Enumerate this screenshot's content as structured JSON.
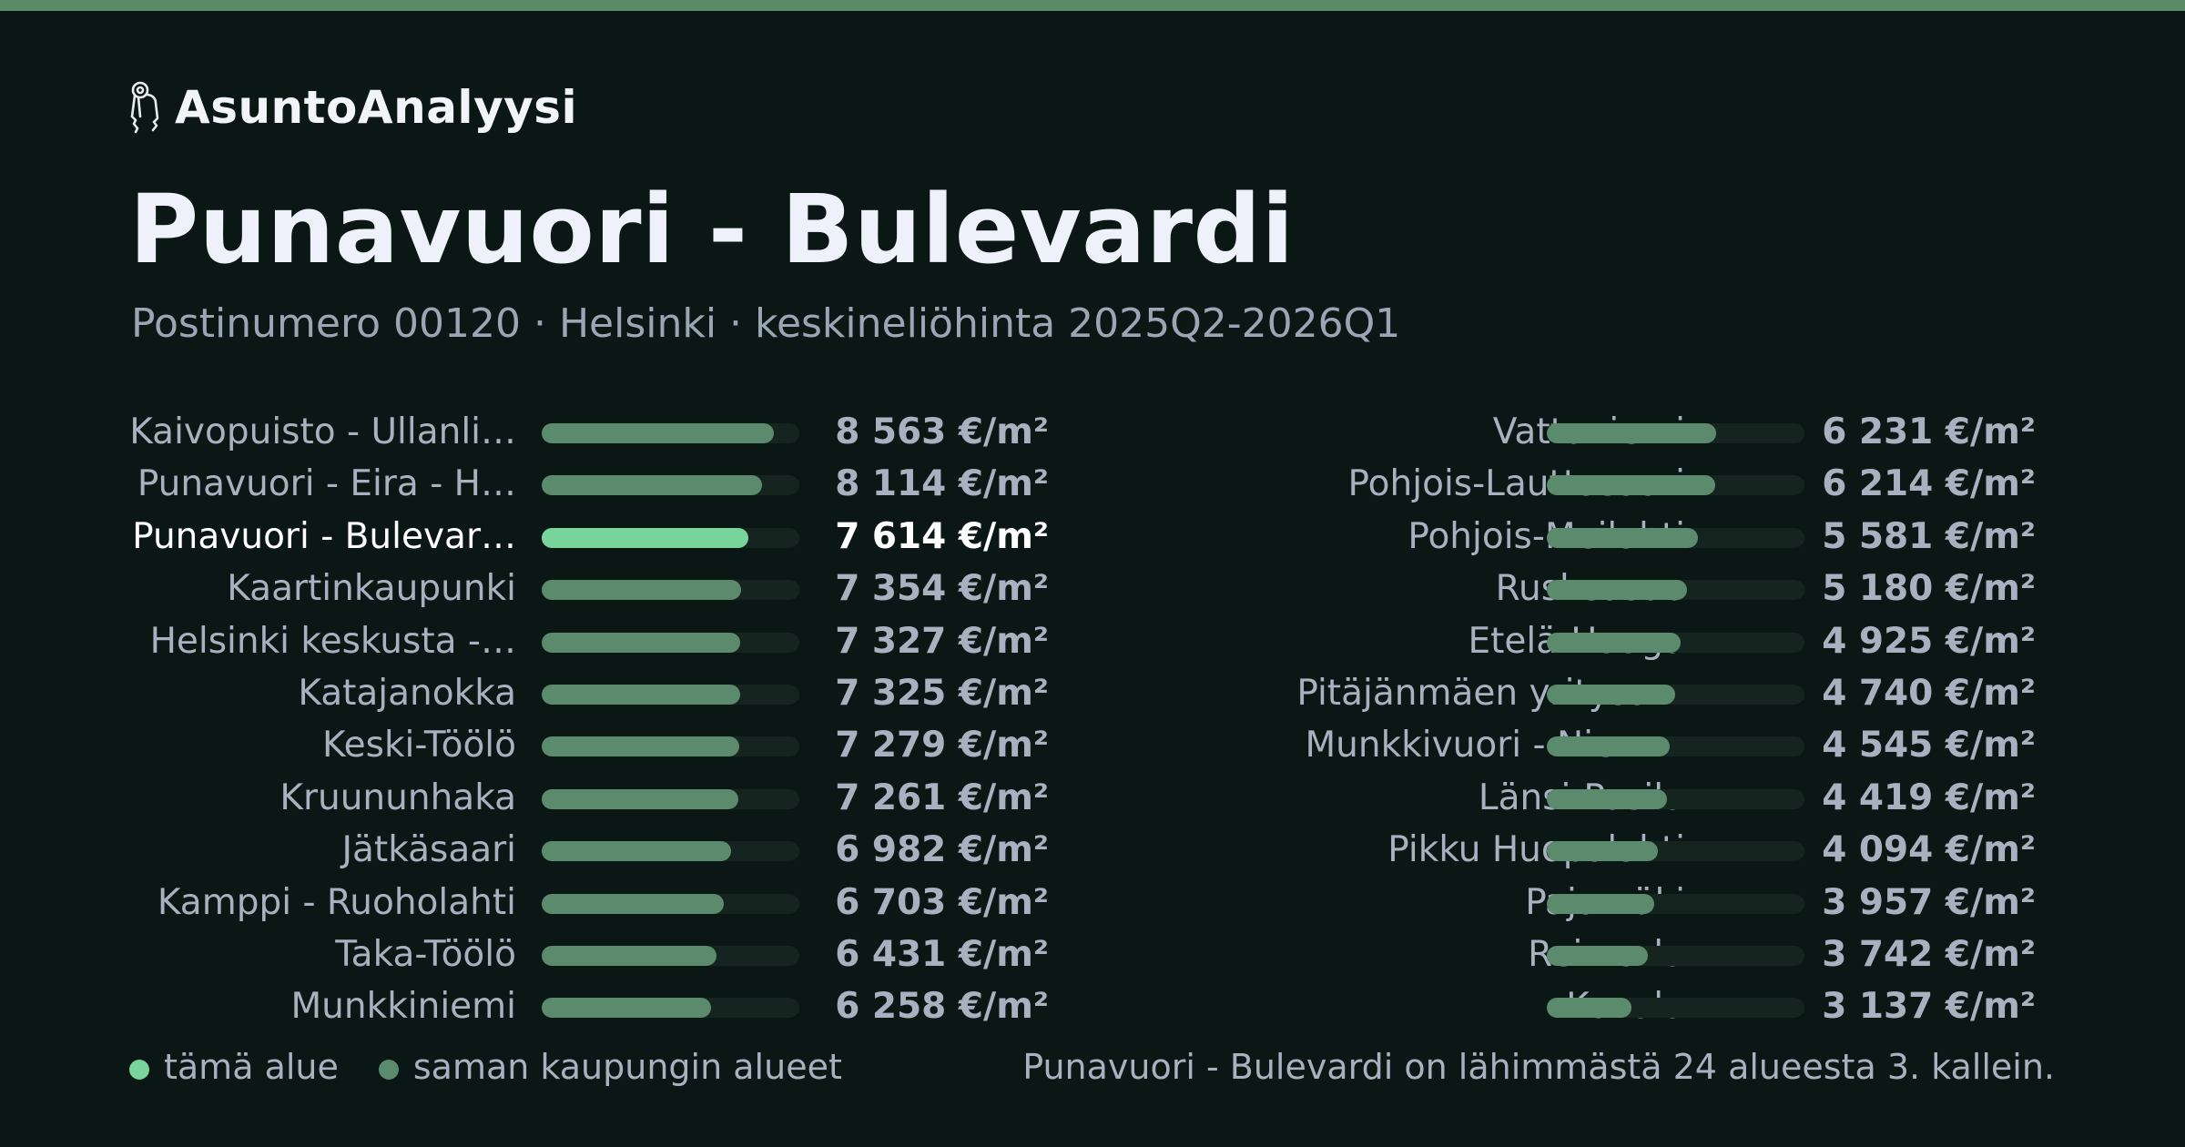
{
  "brand": {
    "name": "AsuntoAnalyysi",
    "icon": "keys-icon"
  },
  "header": {
    "title": "Punavuori - Bulevardi",
    "subtitle": "Postinumero 00120 · Helsinki · keskineliöhinta 2025Q2-2026Q1"
  },
  "chart_data": {
    "type": "bar",
    "orientation": "horizontal",
    "title": "Punavuori - Bulevardi",
    "unit": "€/m²",
    "xlim": [
      0,
      9500
    ],
    "highlight": "Punavuori - Bulevardi",
    "colors": {
      "highlight": "#78d49a",
      "others": "#5b8a6c",
      "track": "#16241f"
    },
    "series": [
      {
        "values": [
          {
            "label": "Kaivopuisto - Ullanlinna",
            "display": "Kaivopuisto - Ullanli…",
            "value": 8563,
            "value_label": "8 563 €/m²"
          },
          {
            "label": "Punavuori - Eira - Hernesaari",
            "display": "Punavuori - Eira - H…",
            "value": 8114,
            "value_label": "8 114 €/m²"
          },
          {
            "label": "Punavuori - Bulevardi",
            "display": "Punavuori - Bulevar…",
            "value": 7614,
            "value_label": "7 614 €/m²",
            "highlight": true
          },
          {
            "label": "Kaartinkaupunki",
            "display": "Kaartinkaupunki",
            "value": 7354,
            "value_label": "7 354 €/m²"
          },
          {
            "label": "Helsinki keskusta",
            "display": "Helsinki keskusta -…",
            "value": 7327,
            "value_label": "7 327 €/m²"
          },
          {
            "label": "Katajanokka",
            "display": "Katajanokka",
            "value": 7325,
            "value_label": "7 325 €/m²"
          },
          {
            "label": "Keski-Töölö",
            "display": "Keski-Töölö",
            "value": 7279,
            "value_label": "7 279 €/m²"
          },
          {
            "label": "Kruununhaka",
            "display": "Kruununhaka",
            "value": 7261,
            "value_label": "7 261 €/m²"
          },
          {
            "label": "Jätkäsaari",
            "display": "Jätkäsaari",
            "value": 6982,
            "value_label": "6 982 €/m²"
          },
          {
            "label": "Kamppi - Ruoholahti",
            "display": "Kamppi - Ruoholahti",
            "value": 6703,
            "value_label": "6 703 €/m²"
          },
          {
            "label": "Taka-Töölö",
            "display": "Taka-Töölö",
            "value": 6431,
            "value_label": "6 431 €/m²"
          },
          {
            "label": "Munkkiniemi",
            "display": "Munkkiniemi",
            "value": 6258,
            "value_label": "6 258 €/m²"
          }
        ]
      },
      {
        "values": [
          {
            "label": "Vattuniemi",
            "display": "Vattuniemi",
            "value": 6231,
            "value_label": "6 231 €/m²"
          },
          {
            "label": "Pohjois-Lauttasaari",
            "display": "Pohjois-Lauttasaari",
            "value": 6214,
            "value_label": "6 214 €/m²"
          },
          {
            "label": "Pohjois-Meilahti",
            "display": "Pohjois-Meilahti",
            "value": 5581,
            "value_label": "5 581 €/m²"
          },
          {
            "label": "Ruskeasuo",
            "display": "Ruskeasuo",
            "value": 5180,
            "value_label": "5 180 €/m²"
          },
          {
            "label": "Etelä-Haaga",
            "display": "Etelä-Haaga",
            "value": 4925,
            "value_label": "4 925 €/m²"
          },
          {
            "label": "Pitäjänmäen yritysalue",
            "display": "Pitäjänmäen yritysa…",
            "value": 4740,
            "value_label": "4 740 €/m²"
          },
          {
            "label": "Munkkivuori - Niemenmäki",
            "display": "Munkkivuori - Niem…",
            "value": 4545,
            "value_label": "4 545 €/m²"
          },
          {
            "label": "Länsi-Pasila",
            "display": "Länsi-Pasila",
            "value": 4419,
            "value_label": "4 419 €/m²"
          },
          {
            "label": "Pikku Huopalahti",
            "display": "Pikku Huopalahti",
            "value": 4094,
            "value_label": "4 094 €/m²"
          },
          {
            "label": "Pajamäki",
            "display": "Pajamäki",
            "value": 3957,
            "value_label": "3 957 €/m²"
          },
          {
            "label": "Reimarla",
            "display": "Reimarla",
            "value": 3742,
            "value_label": "3 742 €/m²"
          },
          {
            "label": "Konala",
            "display": "Konala",
            "value": 3137,
            "value_label": "3 137 €/m²"
          }
        ]
      }
    ],
    "legend": [
      {
        "label": "tämä alue",
        "color": "#78d49a"
      },
      {
        "label": "saman kaupungin alueet",
        "color": "#5b8a6c"
      }
    ],
    "legend_position": "bottom-left"
  },
  "footer": {
    "note": "Punavuori - Bulevardi on lähimmästä 24 alueesta 3. kallein."
  }
}
